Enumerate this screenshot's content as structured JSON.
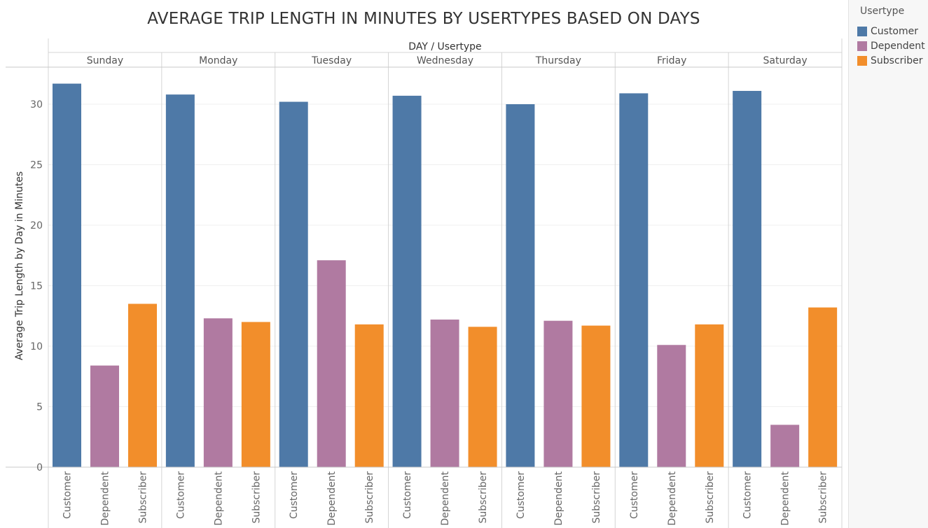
{
  "chart_data": {
    "type": "bar",
    "title": "AVERAGE TRIP LENGTH IN MINUTES BY USERTYPES BASED ON DAYS",
    "column_header": "DAY / Usertype",
    "ylabel": "Average Trip Length by Day in Minutes",
    "ylim": [
      0,
      32.5
    ],
    "yticks": [
      0,
      5,
      10,
      15,
      20,
      25,
      30
    ],
    "grid": true,
    "legend_title": "Usertype",
    "legend_position": "right",
    "days": [
      "Sunday",
      "Monday",
      "Tuesday",
      "Wednesday",
      "Thursday",
      "Friday",
      "Saturday"
    ],
    "series": [
      {
        "name": "Customer",
        "color": "#4e79a7",
        "values": [
          31.7,
          30.8,
          30.2,
          30.7,
          30.0,
          30.9,
          31.1
        ]
      },
      {
        "name": "Dependent",
        "color": "#b07aa1",
        "values": [
          8.4,
          12.3,
          17.1,
          12.2,
          12.1,
          10.1,
          3.5
        ]
      },
      {
        "name": "Subscriber",
        "color": "#f28e2b",
        "values": [
          13.5,
          12.0,
          11.8,
          11.6,
          11.7,
          11.8,
          13.2
        ]
      }
    ]
  }
}
